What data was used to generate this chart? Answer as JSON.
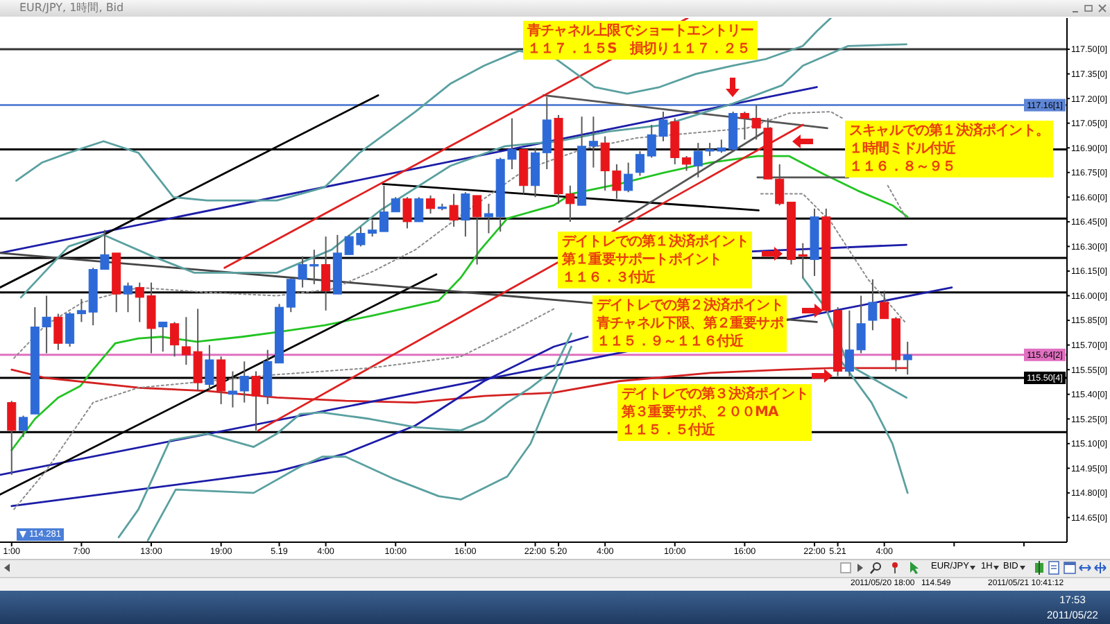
{
  "chart_data": {
    "type": "candlestick",
    "title": "EUR/JPY, 1時間, Bid",
    "x": [
      "2011-05-18T01:00",
      "2011-05-18T02:00",
      "2011-05-18T03:00",
      "2011-05-18T04:00",
      "2011-05-18T05:00",
      "2011-05-18T06:00",
      "2011-05-18T07:00",
      "2011-05-18T08:00",
      "2011-05-18T09:00",
      "2011-05-18T10:00",
      "2011-05-18T11:00",
      "2011-05-18T12:00",
      "2011-05-18T13:00",
      "2011-05-18T14:00",
      "2011-05-18T15:00",
      "2011-05-18T16:00",
      "2011-05-18T17:00",
      "2011-05-18T18:00",
      "2011-05-18T19:00",
      "2011-05-18T20:00",
      "2011-05-18T21:00",
      "2011-05-18T22:00",
      "2011-05-18T23:00",
      "2011-05-19T00:00",
      "2011-05-19T01:00",
      "2011-05-19T02:00",
      "2011-05-19T03:00",
      "2011-05-19T04:00",
      "2011-05-19T05:00",
      "2011-05-19T06:00",
      "2011-05-19T07:00",
      "2011-05-19T08:00",
      "2011-05-19T09:00",
      "2011-05-19T10:00",
      "2011-05-19T11:00",
      "2011-05-19T12:00",
      "2011-05-19T13:00",
      "2011-05-19T14:00",
      "2011-05-19T15:00",
      "2011-05-19T16:00",
      "2011-05-19T17:00",
      "2011-05-19T18:00",
      "2011-05-19T19:00",
      "2011-05-19T20:00",
      "2011-05-19T21:00",
      "2011-05-19T22:00",
      "2011-05-19T23:00",
      "2011-05-20T00:00",
      "2011-05-20T01:00",
      "2011-05-20T02:00",
      "2011-05-20T03:00",
      "2011-05-20T04:00",
      "2011-05-20T05:00",
      "2011-05-20T06:00",
      "2011-05-20T07:00",
      "2011-05-20T08:00",
      "2011-05-20T09:00",
      "2011-05-20T10:00",
      "2011-05-20T11:00",
      "2011-05-20T12:00",
      "2011-05-20T13:00",
      "2011-05-20T14:00",
      "2011-05-20T15:00",
      "2011-05-20T16:00",
      "2011-05-20T17:00",
      "2011-05-20T18:00",
      "2011-05-20T19:00",
      "2011-05-20T20:00",
      "2011-05-20T21:00",
      "2011-05-20T22:00",
      "2011-05-20T23:00",
      "2011-05-21T00:00",
      "2011-05-21T01:00",
      "2011-05-21T02:00",
      "2011-05-21T03:00",
      "2011-05-21T04:00",
      "2011-05-21T05:00",
      "2011-05-21T06:00"
    ],
    "ohlc": [
      [
        115.35,
        115.36,
        114.91,
        115.18
      ],
      [
        115.18,
        115.27,
        115.14,
        115.26
      ],
      [
        115.28,
        115.93,
        115.28,
        115.81
      ],
      [
        115.81,
        116.0,
        115.65,
        115.87
      ],
      [
        115.87,
        115.89,
        115.67,
        115.71
      ],
      [
        115.71,
        115.9,
        115.69,
        115.89
      ],
      [
        115.89,
        115.98,
        115.84,
        115.91
      ],
      [
        115.9,
        116.17,
        115.82,
        116.16
      ],
      [
        116.16,
        116.4,
        116.16,
        116.25
      ],
      [
        116.26,
        116.26,
        115.9,
        116.01
      ],
      [
        116.01,
        116.08,
        115.9,
        116.06
      ],
      [
        116.05,
        116.08,
        115.84,
        115.99
      ],
      [
        116.0,
        116.08,
        115.65,
        115.8
      ],
      [
        115.81,
        115.84,
        115.66,
        115.84
      ],
      [
        115.83,
        115.84,
        115.63,
        115.7
      ],
      [
        115.69,
        115.87,
        115.58,
        115.64
      ],
      [
        115.66,
        115.92,
        115.42,
        115.47
      ],
      [
        115.46,
        115.7,
        115.42,
        115.61
      ],
      [
        115.61,
        115.63,
        115.34,
        115.42
      ],
      [
        115.4,
        115.54,
        115.32,
        115.42
      ],
      [
        115.42,
        115.6,
        115.35,
        115.51
      ],
      [
        115.51,
        115.54,
        115.18,
        115.39
      ],
      [
        115.39,
        115.67,
        115.34,
        115.6
      ],
      [
        115.59,
        115.95,
        115.59,
        115.93
      ],
      [
        115.93,
        116.11,
        115.9,
        116.1
      ],
      [
        116.1,
        116.24,
        116.05,
        116.19
      ],
      [
        116.18,
        116.28,
        116.07,
        116.19
      ],
      [
        116.19,
        116.36,
        115.91,
        116.03
      ],
      [
        116.01,
        116.37,
        116.01,
        116.26
      ],
      [
        116.25,
        116.37,
        116.25,
        116.36
      ],
      [
        116.31,
        116.42,
        116.3,
        116.38
      ],
      [
        116.38,
        116.46,
        116.36,
        116.4
      ],
      [
        116.39,
        116.67,
        116.39,
        116.51
      ],
      [
        116.51,
        116.6,
        116.51,
        116.59
      ],
      [
        116.59,
        116.6,
        116.41,
        116.45
      ],
      [
        116.45,
        116.6,
        116.45,
        116.59
      ],
      [
        116.59,
        116.61,
        116.5,
        116.53
      ],
      [
        116.53,
        116.56,
        116.52,
        116.54
      ],
      [
        116.55,
        116.62,
        116.42,
        116.46
      ],
      [
        116.46,
        116.63,
        116.36,
        116.62
      ],
      [
        116.61,
        116.61,
        116.19,
        116.48
      ],
      [
        116.48,
        116.56,
        116.38,
        116.5
      ],
      [
        116.48,
        116.84,
        116.39,
        116.83
      ],
      [
        116.83,
        117.08,
        116.77,
        116.89
      ],
      [
        116.89,
        116.89,
        116.62,
        116.67
      ],
      [
        116.67,
        116.9,
        116.6,
        116.87
      ],
      [
        116.87,
        117.21,
        116.77,
        117.07
      ],
      [
        117.08,
        117.1,
        116.56,
        116.62
      ],
      [
        116.62,
        116.67,
        116.45,
        116.56
      ],
      [
        116.55,
        117.09,
        116.55,
        116.91
      ],
      [
        116.91,
        117.09,
        116.78,
        116.94
      ],
      [
        116.93,
        116.97,
        116.64,
        116.76
      ],
      [
        116.76,
        116.8,
        116.59,
        116.64
      ],
      [
        116.64,
        116.81,
        116.63,
        116.74
      ],
      [
        116.75,
        116.88,
        116.73,
        116.86
      ],
      [
        116.85,
        117.04,
        116.84,
        116.98
      ],
      [
        116.97,
        117.12,
        116.94,
        117.07
      ],
      [
        117.06,
        117.08,
        116.8,
        116.84
      ],
      [
        116.84,
        116.85,
        116.76,
        116.8
      ],
      [
        116.79,
        116.93,
        116.72,
        116.88
      ],
      [
        116.88,
        116.93,
        116.85,
        116.89
      ],
      [
        116.88,
        116.95,
        116.87,
        116.9
      ],
      [
        116.89,
        117.12,
        116.88,
        117.11
      ],
      [
        117.11,
        117.12,
        116.95,
        117.08
      ],
      [
        117.08,
        117.16,
        116.95,
        117.02
      ],
      [
        117.02,
        117.08,
        116.71,
        116.71
      ],
      [
        116.71,
        116.8,
        116.55,
        116.56
      ],
      [
        116.57,
        116.57,
        116.19,
        116.22
      ],
      [
        116.25,
        116.32,
        116.11,
        116.24
      ],
      [
        116.22,
        116.53,
        116.12,
        116.48
      ],
      [
        116.48,
        116.53,
        115.9,
        115.91
      ],
      [
        115.91,
        115.93,
        115.51,
        115.54
      ],
      [
        115.54,
        115.91,
        115.51,
        115.67
      ],
      [
        115.67,
        116.0,
        115.65,
        115.83
      ],
      [
        115.85,
        116.1,
        115.79,
        115.96
      ],
      [
        115.96,
        116.03,
        115.86,
        115.86
      ],
      [
        115.86,
        115.87,
        115.54,
        115.61
      ],
      [
        115.61,
        115.72,
        115.52,
        115.64
      ]
    ],
    "colors": [
      "#e8161b",
      "#2d6ad8",
      "#2d6ad8",
      "#2d6ad8",
      "#e8161b",
      "#2d6ad8",
      "#2d6ad8",
      "#2d6ad8",
      "#2d6ad8",
      "#e8161b",
      "#2d6ad8",
      "#e8161b",
      "#e8161b",
      "#2d6ad8",
      "#e8161b",
      "#e8161b",
      "#e8161b",
      "#2d6ad8",
      "#e8161b",
      "#2d6ad8",
      "#2d6ad8",
      "#e8161b",
      "#2d6ad8",
      "#2d6ad8",
      "#2d6ad8",
      "#2d6ad8",
      "#2d6ad8",
      "#e8161b",
      "#2d6ad8",
      "#2d6ad8",
      "#2d6ad8",
      "#2d6ad8",
      "#2d6ad8",
      "#2d6ad8",
      "#e8161b",
      "#2d6ad8",
      "#e8161b",
      "#2d6ad8",
      "#e8161b",
      "#2d6ad8",
      "#e8161b",
      "#2d6ad8",
      "#2d6ad8",
      "#2d6ad8",
      "#e8161b",
      "#2d6ad8",
      "#2d6ad8",
      "#e8161b",
      "#e8161b",
      "#2d6ad8",
      "#2d6ad8",
      "#e8161b",
      "#e8161b",
      "#2d6ad8",
      "#2d6ad8",
      "#2d6ad8",
      "#2d6ad8",
      "#e8161b",
      "#e8161b",
      "#2d6ad8",
      "#2d6ad8",
      "#2d6ad8",
      "#2d6ad8",
      "#e8161b",
      "#e8161b",
      "#e8161b",
      "#e8161b",
      "#e8161b",
      "#e8161b",
      "#2d6ad8",
      "#e8161b",
      "#e8161b",
      "#2d6ad8",
      "#2d6ad8",
      "#2d6ad8",
      "#e8161b",
      "#e8161b",
      "#2d6ad8"
    ],
    "series": [
      {
        "type": "line",
        "color": "#22c422",
        "x": [
          "2011-05-18T01:00",
          "2011-05-18T03:00",
          "2011-05-18T05:00",
          "2011-05-18T06:54",
          "2011-05-18T08:00",
          "2011-05-18T09:54",
          "2011-05-18T11:54",
          "2011-05-18T13:54",
          "2011-05-18T16:54",
          "2011-05-18T20:48",
          "2011-05-19T00:00",
          "2011-05-19T03:54",
          "2011-05-19T08:06",
          "2011-05-19T13:42",
          "2011-05-19T15:36",
          "2011-05-19T17:18",
          "2011-05-19T19:36",
          "2011-05-19T21:36",
          "2011-05-19T23:36",
          "2011-05-20T01:06",
          "2011-05-20T05:12",
          "2011-05-20T09:06",
          "2011-05-20T13:00",
          "2011-05-20T17:06",
          "2011-05-20T19:48",
          "2011-05-20T22:48",
          "2011-05-21T01:42",
          "2011-05-21T04:42",
          "2011-05-21T06:00"
        ],
        "values": [
          115.06,
          115.25,
          115.38,
          115.45,
          115.55,
          115.71,
          115.74,
          115.75,
          115.72,
          115.75,
          115.78,
          115.82,
          115.88,
          115.97,
          116.11,
          116.28,
          116.47,
          116.51,
          116.55,
          116.62,
          116.68,
          116.75,
          116.81,
          116.85,
          116.85,
          116.74,
          116.64,
          116.55,
          116.48
        ]
      },
      {
        "type": "line",
        "color": "#d42020",
        "x": [
          "2011-05-18T01:00",
          "2011-05-18T03:54",
          "2011-05-18T11:54",
          "2011-05-18T17:48",
          "2011-05-18T23:48",
          "2011-05-19T05:42",
          "2011-05-19T11:42",
          "2011-05-19T17:36",
          "2011-05-19T23:36",
          "2011-05-20T05:12",
          "2011-05-20T13:00",
          "2011-05-20T19:24",
          "2011-05-20T23:24",
          "2011-05-21T05:54"
        ],
        "values": [
          115.55,
          115.5,
          115.44,
          115.42,
          115.38,
          115.36,
          115.35,
          115.39,
          115.41,
          115.48,
          115.53,
          115.55,
          115.56,
          115.56
        ]
      },
      {
        "type": "line",
        "color": "#1c1ca8",
        "x": [
          "2011-05-18T01:00",
          "2011-05-18T11:54",
          "2011-05-18T23:48",
          "2011-05-19T05:42",
          "2011-05-19T11:42",
          "2011-05-19T17:36",
          "2011-05-19T23:36",
          "2011-05-20T02:30"
        ],
        "values": [
          114.72,
          114.82,
          114.93,
          115.04,
          115.21,
          115.48,
          115.69,
          115.75
        ]
      },
      {
        "type": "line",
        "color": "#1c1ca8",
        "x": [
          "2011-05-18T00:00",
          "2011-05-21T09:48"
        ],
        "values": [
          114.91,
          116.05
        ]
      },
      {
        "type": "line",
        "color": "#1c1ca8",
        "x": [
          "2011-05-18T00:00",
          "2011-05-20T22:12"
        ],
        "values": [
          116.26,
          117.27
        ]
      },
      {
        "type": "line",
        "color": "#1c1ca8",
        "x": [
          "2011-05-20T16:36",
          "2011-05-21T05:54"
        ],
        "values": [
          116.27,
          116.31
        ]
      },
      {
        "type": "line",
        "color": "#000000",
        "x": [
          "2011-05-18T00:00",
          "2011-05-19T13:30"
        ],
        "values": [
          114.79,
          116.13
        ]
      },
      {
        "type": "line",
        "color": "#000000",
        "x": [
          "2011-05-18T00:00",
          "2011-05-19T08:30"
        ],
        "values": [
          116.05,
          117.22
        ]
      },
      {
        "type": "line",
        "color": "#444444",
        "x": [
          "2011-05-18T00:00",
          "2011-05-20T22:12"
        ],
        "values": [
          116.26,
          115.84
        ]
      },
      {
        "type": "line",
        "color": "#000000",
        "x": [
          "2011-05-19T08:54",
          "2011-05-20T17:12"
        ],
        "values": [
          116.68,
          116.52
        ]
      },
      {
        "type": "line",
        "color": "#555555",
        "x": [
          "2011-05-19T22:42",
          "2011-05-20T23:06"
        ],
        "values": [
          117.22,
          117.02
        ]
      },
      {
        "type": "line",
        "color": "#555555",
        "x": [
          "2011-05-20T05:12",
          "2011-05-20T18:12"
        ],
        "values": [
          116.45,
          117.02
        ]
      },
      {
        "type": "line",
        "color": "#555555",
        "x": [
          "2011-05-20T17:06",
          "2011-05-21T00:54"
        ],
        "values": [
          116.72,
          116.72
        ]
      },
      {
        "type": "line",
        "color": "#e02020",
        "x": [
          "2011-05-18T19:18",
          "2011-05-20T11:06"
        ],
        "values": [
          116.17,
          117.69
        ]
      },
      {
        "type": "line",
        "color": "#e02020",
        "x": [
          "2011-05-18T22:12",
          "2011-05-20T21:00"
        ],
        "values": [
          115.18,
          117.04
        ]
      },
      {
        "type": "line",
        "color": "#5aa0a0",
        "x": [
          "2011-05-18T01:24",
          "2011-05-18T03:36",
          "2011-05-18T05:54",
          "2011-05-18T08:54",
          "2011-05-18T11:54",
          "2011-05-18T14:54",
          "2011-05-18T17:48",
          "2011-05-18T23:48",
          "2011-05-19T03:54",
          "2011-05-19T06:54",
          "2011-05-19T11:42",
          "2011-05-19T14:42",
          "2011-05-19T17:36",
          "2011-05-19T20:36",
          "2011-05-19T23:36",
          "2011-05-20T03:06",
          "2011-05-20T05:54",
          "2011-05-20T08:42",
          "2011-05-20T11:48",
          "2011-05-20T15:00",
          "2011-05-20T17:48",
          "2011-05-20T21:00",
          "2011-05-20T22:12",
          "2011-05-20T23:24"
        ],
        "values": [
          116.7,
          116.81,
          116.87,
          116.94,
          116.87,
          116.6,
          116.58,
          116.58,
          116.66,
          116.87,
          117.12,
          117.29,
          117.4,
          117.49,
          117.45,
          117.27,
          117.23,
          117.27,
          117.35,
          117.4,
          117.44,
          117.52,
          117.61,
          117.69
        ]
      },
      {
        "type": "line",
        "color": "#5aa0a0",
        "x": [
          "2011-05-18T01:48",
          "2011-05-18T05:54",
          "2011-05-18T08:54",
          "2011-05-18T13:06",
          "2011-05-18T16:42",
          "2011-05-18T23:48",
          "2011-05-19T04:30",
          "2011-05-19T08:42",
          "2011-05-19T14:42",
          "2011-05-19T19:24",
          "2011-05-20T00:00",
          "2011-05-20T04:18",
          "2011-05-20T09:06",
          "2011-05-20T15:00",
          "2011-05-20T19:12",
          "2011-05-20T21:00",
          "2011-05-21T00:54",
          "2011-05-21T05:54"
        ],
        "values": [
          115.99,
          116.3,
          116.37,
          116.24,
          116.14,
          116.14,
          116.28,
          116.52,
          116.79,
          116.91,
          116.94,
          117.0,
          117.04,
          117.17,
          117.28,
          117.4,
          117.52,
          117.53
        ]
      },
      {
        "type": "line",
        "color": "#5aa0a0",
        "x": [
          "2011-05-18T10:12",
          "2011-05-18T11:54",
          "2011-05-18T14:36",
          "2011-05-18T17:48",
          "2011-05-18T21:48",
          "2011-05-18T23:48",
          "2011-05-19T01:48",
          "2011-05-19T03:42",
          "2011-05-19T07:48",
          "2011-05-19T11:42",
          "2011-05-19T15:36",
          "2011-05-19T17:36",
          "2011-05-19T19:36",
          "2011-05-19T21:36",
          "2011-05-19T23:36",
          "2011-05-20T01:06",
          "2011-05-20T12:00",
          "2011-05-20T21:00",
          "2011-05-20T23:00",
          "2011-05-21T00:54",
          "2011-05-21T05:54"
        ],
        "values": [
          114.53,
          114.7,
          115.12,
          115.16,
          115.08,
          115.16,
          115.28,
          115.29,
          115.25,
          115.2,
          115.18,
          115.24,
          115.35,
          115.44,
          115.55,
          115.77,
          null,
          116.11,
          115.92,
          115.58,
          115.38
        ]
      },
      {
        "type": "line",
        "color": "#5aa0a0",
        "x": [
          "2011-05-18T12:42",
          "2011-05-18T15:06",
          "2011-05-18T21:48",
          "2011-05-19T01:48",
          "2011-05-19T03:42",
          "2011-05-19T05:42",
          "2011-05-19T09:42",
          "2011-05-19T13:42",
          "2011-05-19T15:36",
          "2011-05-19T19:36",
          "2011-05-19T21:36",
          "2011-05-19T23:36",
          "2011-05-20T01:06",
          "2011-05-20T12:00",
          "2011-05-21T00:12",
          "2011-05-21T02:54",
          "2011-05-21T04:42",
          "2011-05-21T06:00"
        ],
        "values": [
          114.51,
          114.82,
          114.8,
          114.96,
          115.02,
          115.02,
          114.89,
          114.78,
          114.76,
          114.9,
          115.1,
          115.44,
          115.69,
          null,
          115.61,
          115.35,
          115.1,
          114.8
        ]
      },
      {
        "type": "line",
        "color": "#8a8a8a",
        "line_style": "dotted",
        "x": [
          "2011-05-18T01:12",
          "2011-05-18T03:54",
          "2011-05-18T07:06",
          "2011-05-18T11:54",
          "2011-05-18T17:48",
          "2011-05-18T23:48",
          "2011-05-19T04:30",
          "2011-05-19T08:06",
          "2011-05-19T11:42",
          "2011-05-19T16:24",
          "2011-05-19T21:12",
          "2011-05-20T02:00",
          "2011-05-20T06:42",
          "2011-05-20T11:30",
          "2011-05-20T16:12",
          "2011-05-20T19:48",
          "2011-05-20T23:24",
          "2011-05-21T00:24",
          "2011-05-21T02:00",
          "2011-05-21T04:18",
          "2011-05-21T05:54"
        ],
        "values": [
          115.62,
          115.82,
          115.96,
          116.05,
          116.02,
          116.0,
          116.04,
          116.15,
          116.28,
          116.53,
          116.77,
          116.89,
          116.96,
          116.99,
          117.02,
          117.11,
          117.12,
          117.08,
          null,
          116.67,
          116.47
        ]
      },
      {
        "type": "line",
        "color": "#8a8a8a",
        "line_style": "dotted",
        "x": [
          "2011-05-18T01:12",
          "2011-05-18T03:54",
          "2011-05-18T08:00",
          "2011-05-18T11:54",
          "2011-05-18T17:48",
          "2011-05-18T23:48",
          "2011-05-19T07:48",
          "2011-05-19T15:36",
          "2011-05-19T19:36",
          "2011-05-19T23:36",
          "2011-05-20T08:00",
          "2011-05-20T17:24",
          "2011-05-20T21:00",
          "2011-05-20T23:24",
          "2011-05-21T02:36",
          "2011-05-21T05:54"
        ],
        "values": [
          114.7,
          114.93,
          115.35,
          115.44,
          115.48,
          115.52,
          115.56,
          115.63,
          115.77,
          115.92,
          null,
          116.62,
          116.62,
          116.45,
          116.1,
          115.83
        ]
      }
    ],
    "xlim": [
      "2011-05-18T00:00",
      "2011-05-21T19:42"
    ],
    "xticks": [
      {
        "value": "2011-05-18T01:00",
        "label": "1:00"
      },
      {
        "value": "2011-05-18T07:00",
        "label": "7:00"
      },
      {
        "value": "2011-05-18T13:00",
        "label": "13:00"
      },
      {
        "value": "2011-05-18T19:00",
        "label": "19:00"
      },
      {
        "value": "2011-05-19T00:00",
        "label": "5.19"
      },
      {
        "value": "2011-05-19T04:00",
        "label": "4:00"
      },
      {
        "value": "2011-05-19T10:00",
        "label": "10:00"
      },
      {
        "value": "2011-05-19T16:00",
        "label": "16:00"
      },
      {
        "value": "2011-05-19T22:00",
        "label": "22:00"
      },
      {
        "value": "2011-05-20T00:00",
        "label": "5.20"
      },
      {
        "value": "2011-05-20T04:00",
        "label": "4:00"
      },
      {
        "value": "2011-05-20T10:00",
        "label": "10:00"
      },
      {
        "value": "2011-05-20T16:00",
        "label": "16:00"
      },
      {
        "value": "2011-05-20T22:00",
        "label": "22:00"
      },
      {
        "value": "2011-05-21T00:00",
        "label": "5.21"
      },
      {
        "value": "2011-05-21T04:00",
        "label": "4:00"
      },
      {
        "value": "2011-05-21T10:00",
        "label": null
      },
      {
        "value": "2011-05-21T16:00",
        "label": null
      }
    ],
    "ylim": [
      114.5,
      117.69
    ],
    "yticks": [
      {
        "value": 114.65,
        "label": "114.65"
      },
      {
        "value": 114.8,
        "label": "114.80"
      },
      {
        "value": 114.95,
        "label": "114.95"
      },
      {
        "value": 115.1,
        "label": "115.10"
      },
      {
        "value": 115.25,
        "label": "115.25"
      },
      {
        "value": 115.4,
        "label": "115.40"
      },
      {
        "value": 115.55,
        "label": "115.55"
      },
      {
        "value": 115.7,
        "label": "115.70"
      },
      {
        "value": 115.85,
        "label": "115.85"
      },
      {
        "value": 116.0,
        "label": "116.00"
      },
      {
        "value": 116.15,
        "label": "116.15"
      },
      {
        "value": 116.3,
        "label": "116.30"
      },
      {
        "value": 116.45,
        "label": "116.45"
      },
      {
        "value": 116.6,
        "label": "116.60"
      },
      {
        "value": 116.75,
        "label": "116.75"
      },
      {
        "value": 116.9,
        "label": "116.90"
      },
      {
        "value": 117.05,
        "label": "117.05"
      },
      {
        "value": 117.2,
        "label": "117.20"
      },
      {
        "value": 117.35,
        "label": "117.35"
      },
      {
        "value": 117.5,
        "label": "117.50"
      }
    ],
    "ref_lines": [
      {
        "axis": "y",
        "value": 117.5,
        "color": "#333333"
      },
      {
        "axis": "y",
        "value": 117.16,
        "label": "117.16[1]",
        "color": "#5f86d6"
      },
      {
        "axis": "y",
        "value": 116.89,
        "color": "#000000"
      },
      {
        "axis": "y",
        "value": 116.47,
        "color": "#000000"
      },
      {
        "axis": "y",
        "value": 116.23,
        "color": "#000000"
      },
      {
        "axis": "y",
        "value": 116.02,
        "color": "#000000"
      },
      {
        "axis": "y",
        "value": 115.64,
        "label": "115.64[2]",
        "color": "#e070c0"
      },
      {
        "axis": "y",
        "value": 115.5,
        "label": "115.50[4]",
        "color": "#000000"
      },
      {
        "axis": "y",
        "value": 115.17,
        "color": "#000000"
      }
    ],
    "annotations": [
      "青チャネル上限でショートエントリー１１７．１５S　損切り１１７．２５",
      "スキャルでの第１決済ポイント。１時間ミドル付近１１６．８～９５",
      "デイトレでの第１決済ポイント第１重要サポートポイント１１６．３付近",
      "デイトレでの第２決済ポイント青チャネル下限、第２重要サポ１１５．９～１１６付近",
      "デイトレでの第３決済ポイント第３重要サポ、２００MA１１５．５付近",
      "114.281",
      "EUR/JPY",
      "1H",
      "BID",
      "2011/05/20 18:00",
      "114.549",
      "2011/05/21 10:41:12",
      "17:53",
      "2011/05/22",
      "[0]"
    ]
  }
}
